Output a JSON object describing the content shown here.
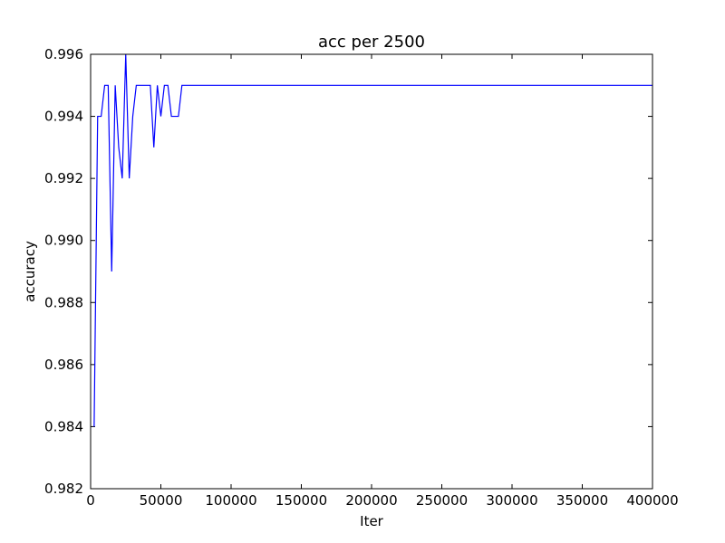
{
  "chart_data": {
    "type": "line",
    "title": "acc per 2500",
    "xlabel": "Iter",
    "ylabel": "accuracy",
    "xlim": [
      0,
      400000
    ],
    "ylim": [
      0.982,
      0.996
    ],
    "xticks": [
      0,
      50000,
      100000,
      150000,
      200000,
      250000,
      300000,
      350000,
      400000
    ],
    "xtick_labels": [
      "0",
      "50000",
      "100000",
      "150000",
      "200000",
      "250000",
      "300000",
      "350000",
      "400000"
    ],
    "yticks": [
      0.982,
      0.984,
      0.986,
      0.988,
      0.99,
      0.992,
      0.994,
      0.996
    ],
    "ytick_labels": [
      "0.982",
      "0.984",
      "0.986",
      "0.988",
      "0.990",
      "0.992",
      "0.994",
      "0.996"
    ],
    "grid": false,
    "legend": "none",
    "series": [
      {
        "color": "#0000ff",
        "x": [
          2500,
          5000,
          7500,
          10000,
          12500,
          15000,
          17500,
          20000,
          22500,
          25000,
          27500,
          30000,
          32500,
          35000,
          37500,
          40000,
          42500,
          45000,
          47500,
          50000,
          52500,
          55000,
          57500,
          60000,
          62500,
          65000,
          67500,
          70000,
          400000
        ],
        "y": [
          0.984,
          0.994,
          0.994,
          0.995,
          0.995,
          0.989,
          0.995,
          0.993,
          0.992,
          0.996,
          0.992,
          0.994,
          0.995,
          0.995,
          0.995,
          0.995,
          0.995,
          0.993,
          0.995,
          0.994,
          0.995,
          0.995,
          0.994,
          0.994,
          0.994,
          0.995,
          0.995,
          0.995,
          0.995
        ]
      }
    ]
  }
}
